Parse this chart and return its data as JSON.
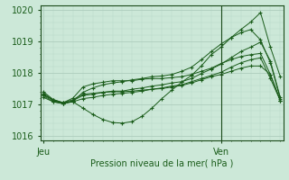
{
  "title": "Pression niveau de la mer( hPa )",
  "bg_color": "#cce8d8",
  "grid_color_major": "#a8c8b8",
  "grid_color_minor": "#b8d8c8",
  "line_color": "#1a5c1a",
  "axis_color": "#1a4a1a",
  "tick_label_color": "#1a5c1a",
  "ylim": [
    1015.85,
    1020.15
  ],
  "yticks": [
    1016,
    1017,
    1018,
    1019,
    1020
  ],
  "xtick_labels": [
    "Jeu",
    "",
    "Ven"
  ],
  "xtick_positions": [
    0,
    18,
    24
  ],
  "vline_x": 18,
  "n_points": 25,
  "series": [
    [
      1017.3,
      1017.15,
      1017.05,
      1017.2,
      1017.55,
      1017.65,
      1017.7,
      1017.75,
      1017.75,
      1017.75,
      1017.8,
      1017.82,
      1017.82,
      1017.85,
      1017.88,
      1017.95,
      1018.05,
      1018.15,
      1018.3,
      1018.42,
      1018.52,
      1018.58,
      1018.62,
      1017.95,
      1017.12
    ],
    [
      1017.4,
      1017.15,
      1017.05,
      1017.15,
      1017.32,
      1017.35,
      1017.38,
      1017.4,
      1017.4,
      1017.42,
      1017.45,
      1017.48,
      1017.5,
      1017.55,
      1017.6,
      1017.68,
      1017.78,
      1017.88,
      1017.95,
      1018.05,
      1018.15,
      1018.22,
      1018.22,
      1017.95,
      1017.12
    ],
    [
      1017.35,
      1017.12,
      1017.05,
      1017.08,
      1016.88,
      1016.68,
      1016.52,
      1016.42,
      1016.4,
      1016.45,
      1016.62,
      1016.88,
      1017.18,
      1017.45,
      1017.7,
      1017.92,
      1018.22,
      1018.58,
      1018.82,
      1019.12,
      1019.38,
      1019.62,
      1019.92,
      1018.82,
      1017.88
    ],
    [
      1017.28,
      1017.08,
      1017.02,
      1017.1,
      1017.38,
      1017.52,
      1017.62,
      1017.68,
      1017.72,
      1017.78,
      1017.82,
      1017.88,
      1017.9,
      1017.95,
      1018.05,
      1018.18,
      1018.42,
      1018.68,
      1018.92,
      1019.12,
      1019.28,
      1019.38,
      1019.05,
      1018.32,
      1017.18
    ],
    [
      1017.22,
      1017.08,
      1017.02,
      1017.08,
      1017.18,
      1017.22,
      1017.28,
      1017.32,
      1017.35,
      1017.38,
      1017.42,
      1017.48,
      1017.52,
      1017.58,
      1017.62,
      1017.72,
      1017.82,
      1017.92,
      1018.02,
      1018.18,
      1018.32,
      1018.42,
      1018.48,
      1017.82,
      1017.12
    ],
    [
      1017.32,
      1017.12,
      1017.02,
      1017.12,
      1017.28,
      1017.32,
      1017.38,
      1017.42,
      1017.42,
      1017.48,
      1017.52,
      1017.58,
      1017.62,
      1017.68,
      1017.72,
      1017.82,
      1017.98,
      1018.12,
      1018.28,
      1018.48,
      1018.68,
      1018.82,
      1018.98,
      1018.38,
      1017.22
    ]
  ]
}
